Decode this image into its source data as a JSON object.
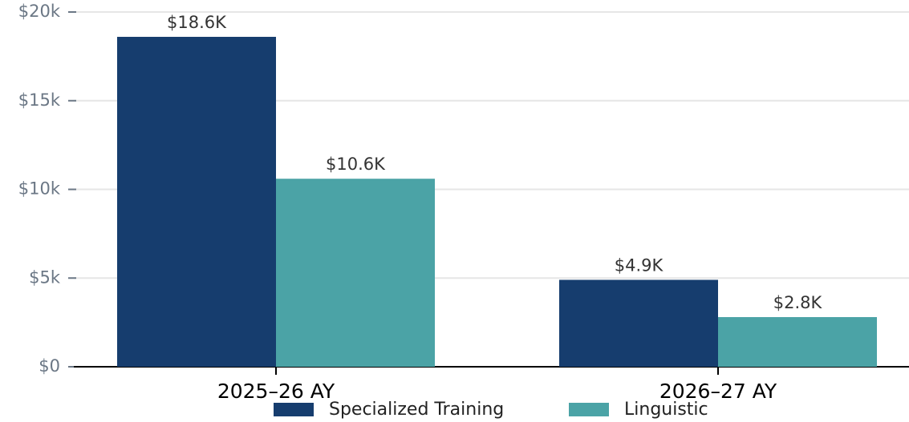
{
  "chart_data": {
    "type": "bar",
    "categories": [
      "2025–26 AY",
      "2026–27 AY"
    ],
    "series": [
      {
        "name": "Specialized Training",
        "color": "#163d6e",
        "values": [
          18600,
          4900
        ],
        "value_labels": [
          "$18.6K",
          "$4.9K"
        ]
      },
      {
        "name": "Linguistic",
        "color": "#4ba3a6",
        "values": [
          10600,
          2800
        ],
        "value_labels": [
          "$10.6K",
          "$2.8K"
        ]
      }
    ],
    "ylim": [
      0,
      20000
    ],
    "yticks": [
      {
        "value": 0,
        "label": "$0"
      },
      {
        "value": 5000,
        "label": "$5k"
      },
      {
        "value": 10000,
        "label": "$10k"
      },
      {
        "value": 15000,
        "label": "$15k"
      },
      {
        "value": 20000,
        "label": "$20k"
      }
    ],
    "grid": true,
    "legend": "bottom"
  }
}
